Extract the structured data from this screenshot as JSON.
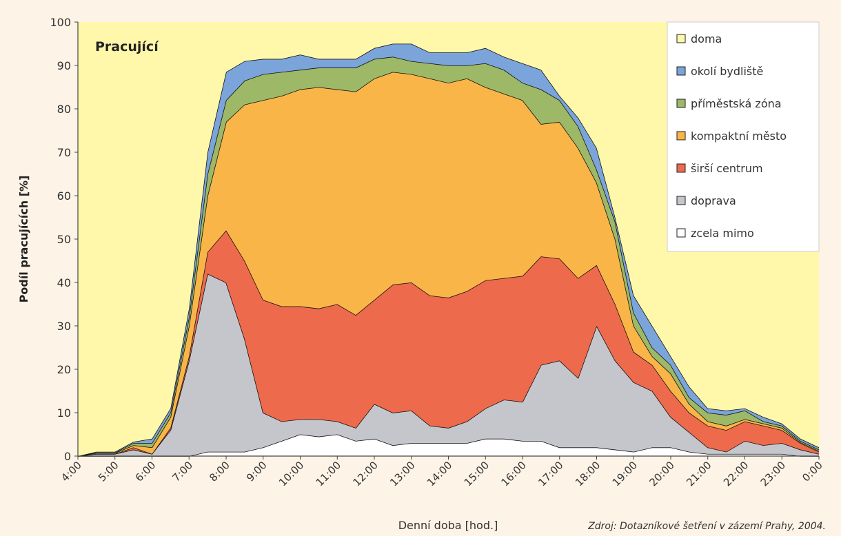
{
  "chart_data": {
    "type": "stacked-area",
    "title": "Pracující",
    "ylabel": "Podíl pracujících [%]",
    "xlabel": "Denní doba [hod.]",
    "source": "Zdroj: Dotazníkové šetření v zázemí Prahy, 2004.",
    "categories": [
      "4:00",
      null,
      "5:00",
      null,
      "6:00",
      null,
      "7:00",
      null,
      "8:00",
      null,
      "9:00",
      null,
      "10:00",
      null,
      "11:00",
      null,
      "12:00",
      null,
      "13:00",
      null,
      "14:00",
      null,
      "15:00",
      null,
      "16:00",
      null,
      "17:00",
      null,
      "18:00",
      null,
      "19:00",
      null,
      "20:00",
      null,
      "21:00",
      null,
      "22:00",
      null,
      "23:00",
      null,
      "0:00"
    ],
    "ylim": [
      0,
      100
    ],
    "yticks": [
      0,
      10,
      20,
      30,
      40,
      50,
      60,
      70,
      80,
      90,
      100
    ],
    "grid": false,
    "legend": "upper right",
    "series": [
      {
        "name": "doma",
        "color": "#fff8aa",
        "values": [
          100,
          99,
          99,
          96.7,
          96,
          89,
          66,
          30,
          11.5,
          9,
          8.5,
          8.5,
          7.5,
          8.5,
          8.5,
          8.5,
          6,
          5,
          5,
          7,
          7,
          7,
          6,
          8,
          9.5,
          11,
          17,
          22,
          29,
          45,
          63,
          70,
          77,
          84,
          89,
          89.5,
          89,
          91,
          92.5,
          96,
          98
        ]
      },
      {
        "name": "okolí bydliště",
        "color": "#7ba4da",
        "values": [
          0,
          0.2,
          0.2,
          0.3,
          1,
          1,
          2,
          5,
          6.5,
          4.5,
          3.5,
          3,
          3.5,
          2,
          2,
          2,
          2.5,
          3,
          4,
          2.5,
          3,
          3,
          3.5,
          3,
          4.5,
          4.5,
          1,
          2,
          5,
          1,
          4,
          5,
          2,
          2.5,
          1,
          1,
          0.5,
          1,
          0.5,
          0.5,
          0.5
        ]
      },
      {
        "name": "příměstská zóna",
        "color": "#9db866",
        "values": [
          0,
          0.1,
          0.1,
          0.5,
          1,
          1,
          2,
          5,
          5,
          5.5,
          6,
          5.5,
          4.5,
          4.5,
          5,
          5.5,
          4.5,
          3.5,
          3,
          3.5,
          4,
          3,
          5.5,
          5.5,
          4,
          8,
          5,
          5,
          3,
          4,
          3,
          2,
          2,
          1.5,
          2,
          2.5,
          2,
          0.5,
          0.5,
          0.3,
          0.3
        ]
      },
      {
        "name": "kompaktní město",
        "color": "#f9b548",
        "values": [
          0,
          0.2,
          0.2,
          0.5,
          1.5,
          2.5,
          7,
          13,
          25,
          36,
          46,
          48.5,
          50,
          51,
          49.5,
          51.5,
          51,
          49,
          48,
          50,
          49.5,
          49,
          44.5,
          42.5,
          40.5,
          30.5,
          31.5,
          30,
          19,
          15,
          6,
          2,
          4,
          2,
          1,
          1,
          0.5,
          0.5,
          0.5,
          0.2,
          0.2
        ]
      },
      {
        "name": "širší centrum",
        "color": "#ee6a4c",
        "values": [
          0,
          0,
          0,
          0.5,
          0,
          0.5,
          1,
          5,
          12,
          18,
          26,
          26.5,
          26,
          25.5,
          27,
          26,
          24,
          29.5,
          29.5,
          30,
          30,
          30,
          29.5,
          28,
          29,
          25,
          23.5,
          23,
          14,
          13,
          7,
          6,
          6,
          4.5,
          5,
          5,
          4.5,
          4.5,
          3,
          1.5,
          0.5
        ]
      },
      {
        "name": "doprava",
        "color": "#c5c6cc",
        "values": [
          0,
          0.5,
          0.5,
          1.5,
          0.5,
          6,
          22,
          41,
          39,
          26,
          8,
          4.5,
          3.5,
          4,
          3,
          3,
          8,
          7.5,
          7.5,
          4,
          3.5,
          5,
          7,
          9,
          9,
          17.5,
          20,
          16,
          28,
          20.5,
          16,
          13,
          7,
          4.5,
          1.5,
          0.5,
          3,
          2,
          2.5,
          1.5,
          0.5
        ]
      },
      {
        "name": "zcela mimo",
        "color": "#ffffff",
        "values": [
          0,
          0,
          0,
          0,
          0,
          0,
          0,
          1,
          1,
          1,
          2,
          3.5,
          5,
          4.5,
          5,
          3.5,
          4,
          2.5,
          3,
          3,
          3,
          3,
          4,
          4,
          3.5,
          3.5,
          2,
          2,
          2,
          1.5,
          1,
          2,
          2,
          1,
          0.5,
          0.5,
          0.5,
          0.5,
          0.5,
          0,
          0
        ]
      }
    ]
  }
}
